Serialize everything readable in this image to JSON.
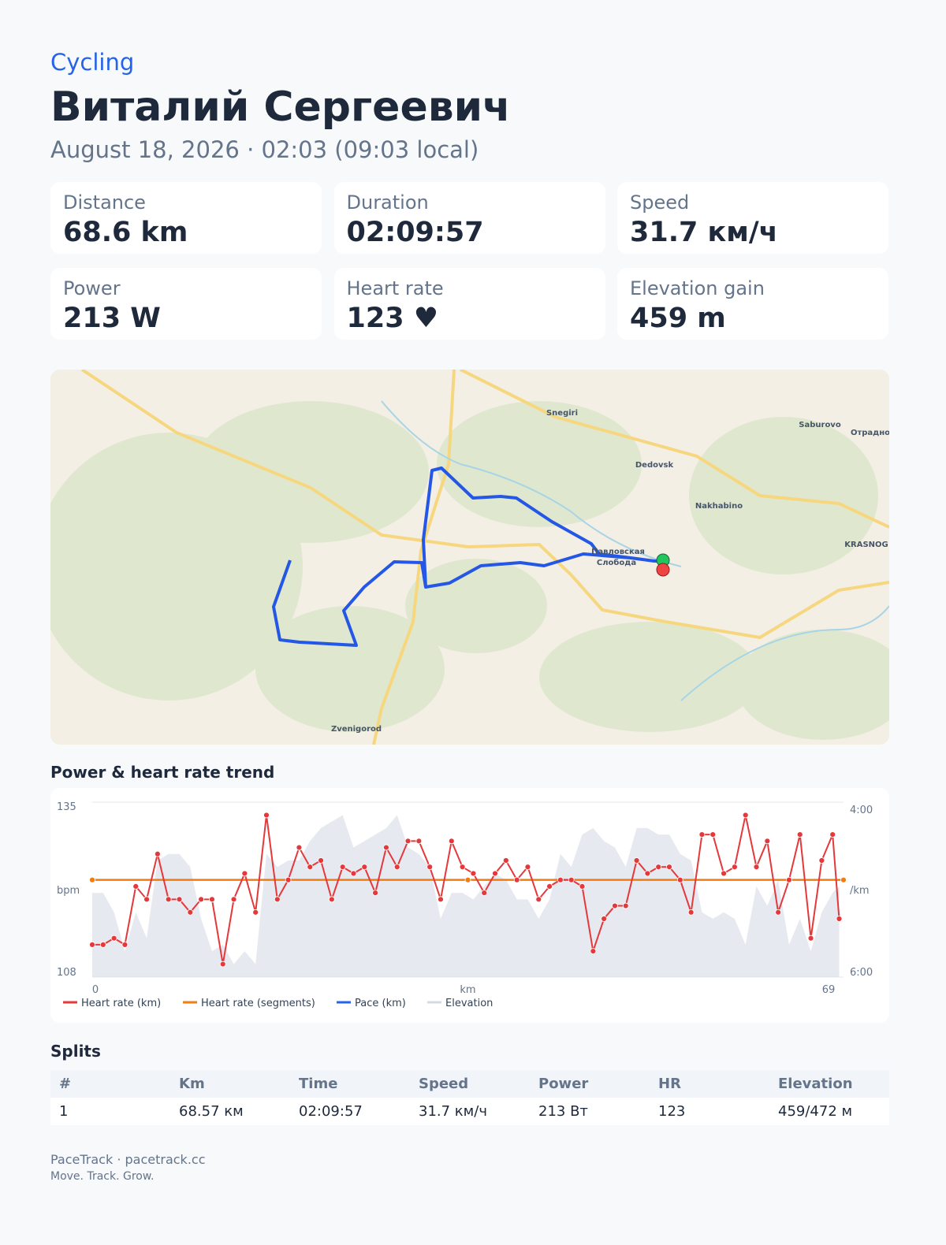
{
  "header": {
    "sport": "Cycling",
    "athlete": "Виталий Сергеевич",
    "date": "August 18, 2026 · 02:03 (09:03 local)"
  },
  "stats": [
    {
      "label": "Distance",
      "value": "68.6 km"
    },
    {
      "label": "Duration",
      "value": "02:09:57"
    },
    {
      "label": "Speed",
      "value": "31.7 км/ч"
    },
    {
      "label": "Power",
      "value": "213 W"
    },
    {
      "label": "Heart rate",
      "value": "123 ♥"
    },
    {
      "label": "Elevation gain",
      "value": "459 m"
    }
  ],
  "map": {
    "labels": [
      "Snegiri",
      "Saburovo",
      "Отрадно",
      "Dedovsk",
      "Nakhabino",
      "KRASNOG",
      "Павловская",
      "Слобода",
      "Zvenigorod"
    ]
  },
  "chart_data": {
    "type": "line",
    "title": "Power & heart rate trend",
    "x_label": "km",
    "y_label": "bpm",
    "y2_label": "/km",
    "x": [
      0,
      1,
      2,
      3,
      4,
      5,
      6,
      7,
      8,
      9,
      10,
      11,
      12,
      13,
      14,
      15,
      16,
      17,
      18,
      19,
      20,
      21,
      22,
      23,
      24,
      25,
      26,
      27,
      28,
      29,
      30,
      31,
      32,
      33,
      34,
      35,
      36,
      37,
      38,
      39,
      40,
      41,
      42,
      43,
      44,
      45,
      46,
      47,
      48,
      49,
      50,
      51,
      52,
      53,
      54,
      55,
      56,
      57,
      58,
      59,
      60,
      61,
      62,
      63,
      64,
      65,
      66,
      67,
      68,
      68.6
    ],
    "xlim": [
      0,
      69
    ],
    "xticks": [
      0,
      69
    ],
    "ylim": [
      108,
      135
    ],
    "yticks": [
      108,
      135
    ],
    "y2lim": [
      360,
      240
    ],
    "y2ticks": [
      {
        "value": 240,
        "label": "4:00"
      },
      {
        "value": 360,
        "label": "6:00"
      }
    ],
    "series": [
      {
        "name": "Heart rate (km)",
        "color": "#e5383b",
        "values": [
          113,
          113,
          114,
          113,
          122,
          120,
          127,
          120,
          120,
          118,
          120,
          120,
          110,
          120,
          124,
          118,
          133,
          120,
          123,
          128,
          125,
          126,
          120,
          125,
          124,
          125,
          121,
          128,
          125,
          129,
          129,
          125,
          120,
          129,
          125,
          124,
          121,
          124,
          126,
          123,
          125,
          120,
          122,
          123,
          123,
          122,
          112,
          117,
          119,
          119,
          126,
          124,
          125,
          125,
          123,
          118,
          130,
          130,
          124,
          125,
          133,
          125,
          129,
          118,
          123,
          130,
          114,
          126,
          130,
          117
        ]
      },
      {
        "name": "Heart rate (segments)",
        "color": "#f07c12",
        "x": [
          0,
          34.5,
          69
        ],
        "values": [
          123,
          123,
          123
        ]
      },
      {
        "name": "Pace (km)",
        "color": "#2563eb",
        "axis": "y2"
      },
      {
        "name": "Elevation",
        "color": "#d5dbe4",
        "values": [
          121,
          121,
          118,
          112,
          118,
          114,
          126,
          127,
          127,
          125,
          117,
          112,
          113,
          110,
          112,
          110,
          127,
          125,
          126,
          126,
          129,
          131,
          132,
          133,
          128,
          129,
          130,
          131,
          133,
          128,
          127,
          125,
          117,
          121,
          121,
          120,
          122,
          124,
          123,
          120,
          120,
          117,
          120,
          127,
          125,
          130,
          131,
          129,
          128,
          125,
          131,
          131,
          130,
          130,
          127,
          126,
          118,
          117,
          118,
          117,
          113,
          122,
          119,
          123,
          113,
          117,
          112,
          118,
          121,
          122
        ]
      }
    ]
  },
  "splits": {
    "title": "Splits",
    "columns": [
      "#",
      "Km",
      "Time",
      "Speed",
      "Power",
      "HR",
      "Elevation"
    ],
    "rows": [
      [
        "1",
        "68.57 км",
        "02:09:57",
        "31.7 км/ч",
        "213 Вт",
        "123",
        "459/472 м"
      ]
    ]
  },
  "footer": {
    "brand": "PaceTrack · pacetrack.cc",
    "tagline": "Move. Track. Grow."
  }
}
